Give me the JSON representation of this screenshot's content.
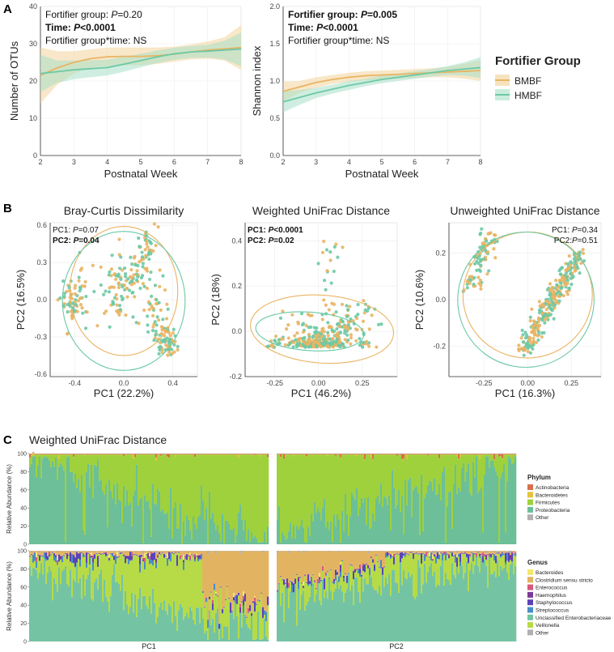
{
  "panels": {
    "A": "A",
    "B": "B",
    "C": "C"
  },
  "colors": {
    "BMBF": "#e9b463",
    "HMBF": "#6cc9a5"
  },
  "chart_data": [
    {
      "type": "line",
      "id": "otus",
      "xlabel": "Postnatal Week",
      "ylabel": "Number of OTUs",
      "xlim": [
        2,
        8
      ],
      "ylim": [
        0,
        40
      ],
      "xticks": [
        "2",
        "3",
        "4",
        "5",
        "6",
        "7",
        "8"
      ],
      "yticks": [
        "0",
        "10",
        "20",
        "30",
        "40"
      ],
      "ytick_values": [
        0,
        10,
        20,
        30,
        40
      ],
      "annotations": [
        {
          "prefix": "Fortifier group: ",
          "p": "P",
          "suffix": "=0.20",
          "bold": false
        },
        {
          "prefix": "Time: ",
          "p": "P",
          "suffix": "<0.0001",
          "bold": true
        },
        {
          "prefix": "Fortifier group*time: NS",
          "p": "",
          "suffix": "",
          "bold": false
        }
      ],
      "x": [
        2,
        2.5,
        3,
        3.5,
        4,
        4.5,
        5,
        5.5,
        6,
        6.5,
        7,
        7.5,
        8
      ],
      "series": [
        {
          "name": "BMBF",
          "values": [
            21.5,
            23.5,
            25,
            26,
            26.5,
            26.6,
            26.6,
            26.8,
            27.2,
            27.8,
            28.3,
            28.6,
            29
          ],
          "lower": [
            14,
            19,
            22,
            23.5,
            24,
            24.2,
            24.2,
            24.6,
            25.2,
            25.8,
            26,
            25.5,
            23
          ],
          "upper": [
            29,
            28,
            28,
            28.5,
            29,
            29,
            29,
            29,
            29.2,
            29.8,
            30.6,
            31.7,
            35
          ]
        },
        {
          "name": "HMBF",
          "values": [
            22,
            22.5,
            23,
            23.3,
            23.6,
            24.5,
            25.5,
            26.5,
            27.3,
            27.8,
            28,
            28.3,
            28.6
          ],
          "lower": [
            17,
            19.5,
            20.5,
            21,
            21.5,
            22.5,
            23.7,
            24.8,
            25.7,
            26.2,
            26.3,
            25.8,
            24
          ],
          "upper": [
            27,
            25.5,
            25.5,
            25.6,
            25.7,
            26.5,
            27.3,
            28.2,
            28.9,
            29.4,
            29.7,
            30.8,
            33
          ]
        }
      ]
    },
    {
      "type": "line",
      "id": "shannon",
      "xlabel": "Postnatal Week",
      "ylabel": "Shannon index",
      "xlim": [
        2,
        8
      ],
      "ylim": [
        0,
        2
      ],
      "xticks": [
        "2",
        "3",
        "4",
        "5",
        "6",
        "7",
        "8"
      ],
      "yticks": [
        "0.0",
        "0.5",
        "1.0",
        "1.5",
        "2.0"
      ],
      "ytick_values": [
        0,
        0.5,
        1,
        1.5,
        2
      ],
      "annotations": [
        {
          "prefix": "Fortifier group: ",
          "p": "P",
          "suffix": "=0.005",
          "bold": true
        },
        {
          "prefix": "Time: ",
          "p": "P",
          "suffix": "<0.0001",
          "bold": true
        },
        {
          "prefix": "Fortifier group*time: NS",
          "p": "",
          "suffix": "",
          "bold": false
        }
      ],
      "x": [
        2,
        2.5,
        3,
        3.5,
        4,
        4.5,
        5,
        5.5,
        6,
        6.5,
        7,
        7.5,
        8
      ],
      "series": [
        {
          "name": "BMBF",
          "values": [
            0.86,
            0.92,
            0.98,
            1.02,
            1.05,
            1.07,
            1.08,
            1.09,
            1.1,
            1.11,
            1.12,
            1.13,
            1.14
          ],
          "lower": [
            0.73,
            0.84,
            0.91,
            0.96,
            0.99,
            1.01,
            1.02,
            1.03,
            1.04,
            1.05,
            1.05,
            1.03,
            1.0
          ],
          "upper": [
            0.99,
            1.0,
            1.05,
            1.08,
            1.11,
            1.13,
            1.14,
            1.15,
            1.16,
            1.17,
            1.19,
            1.23,
            1.28
          ]
        },
        {
          "name": "HMBF",
          "values": [
            0.72,
            0.78,
            0.84,
            0.89,
            0.94,
            0.98,
            1.02,
            1.05,
            1.08,
            1.11,
            1.14,
            1.16,
            1.18
          ],
          "lower": [
            0.58,
            0.68,
            0.77,
            0.83,
            0.88,
            0.93,
            0.97,
            1.0,
            1.03,
            1.06,
            1.08,
            1.07,
            1.04
          ],
          "upper": [
            0.86,
            0.88,
            0.91,
            0.95,
            1.0,
            1.03,
            1.07,
            1.1,
            1.13,
            1.16,
            1.2,
            1.25,
            1.32
          ]
        }
      ]
    },
    {
      "type": "scatter",
      "id": "bray",
      "title": "Bray-Curtis Dissimilarity",
      "xlabel": "PC1  (22.2%)",
      "ylabel": "PC2  (16.5%)",
      "xlim": [
        -0.6,
        0.6
      ],
      "ylim": [
        -0.62,
        0.62
      ],
      "xticks": [
        "-0.4",
        "0.0",
        "0.4"
      ],
      "xtick_values": [
        -0.4,
        0,
        0.4
      ],
      "yticks": [
        "-0.6",
        "-0.3",
        "0.0",
        "0.3",
        "0.6"
      ],
      "ytick_values": [
        -0.6,
        -0.3,
        0,
        0.3,
        0.6
      ],
      "annotations": [
        {
          "prefix": "PC1: ",
          "p": "P",
          "suffix": "=0.07",
          "bold": false
        },
        {
          "prefix": "PC2: ",
          "p": "P",
          "suffix": "=0.04",
          "bold": true
        }
      ],
      "ann_align": "left",
      "ellipses": [
        {
          "name": "BMBF",
          "cx": 0.0,
          "cy": 0.07,
          "rx": 0.44,
          "ry": 0.52
        },
        {
          "name": "HMBF",
          "cx": 0.0,
          "cy": -0.01,
          "rx": 0.5,
          "ry": 0.56
        }
      ]
    },
    {
      "type": "scatter",
      "id": "wunifrac",
      "title": "Weighted UniFrac Distance",
      "xlabel": "PC1  (46.2%)",
      "ylabel": "PC2  (18%)",
      "xlim": [
        -0.42,
        0.45
      ],
      "ylim": [
        -0.2,
        0.48
      ],
      "xticks": [
        "-0.25",
        "0.00",
        "0.25"
      ],
      "xtick_values": [
        -0.25,
        0,
        0.25
      ],
      "yticks": [
        "-0.2",
        "0.0",
        "0.2",
        "0.4"
      ],
      "ytick_values": [
        -0.2,
        0,
        0.2,
        0.4
      ],
      "annotations": [
        {
          "prefix": "PC1: ",
          "p": "P",
          "suffix": "<0.0001",
          "bold": true
        },
        {
          "prefix": "PC2: ",
          "p": "P",
          "suffix": "=0.02",
          "bold": true
        }
      ],
      "ann_align": "left",
      "ellipses": [
        {
          "name": "BMBF",
          "cx": 0.02,
          "cy": 0.01,
          "rx": 0.41,
          "ry": 0.15
        },
        {
          "name": "HMBF",
          "cx": -0.05,
          "cy": 0.0,
          "rx": 0.31,
          "ry": 0.085
        }
      ]
    },
    {
      "type": "scatter",
      "id": "uunifrac",
      "title": "Unweighted UniFrac Distance",
      "xlabel": "PC1  (16.3%)",
      "ylabel": "PC2  (10.6%)",
      "xlim": [
        -0.45,
        0.42
      ],
      "ylim": [
        -0.33,
        0.33
      ],
      "xticks": [
        "-0.25",
        "0.00",
        "0.25"
      ],
      "xtick_values": [
        -0.25,
        0,
        0.25
      ],
      "yticks": [
        "-0.2",
        "0.0",
        "0.2"
      ],
      "ytick_values": [
        -0.2,
        0,
        0.2
      ],
      "annotations": [
        {
          "prefix": "PC1: ",
          "p": "P",
          "suffix": "=0.34",
          "bold": false
        },
        {
          "prefix": "PC2:",
          "p": "P",
          "suffix": "=0.51",
          "bold": false
        }
      ],
      "ann_align": "right",
      "ellipses": [
        {
          "name": "BMBF",
          "cx": 0.0,
          "cy": 0.02,
          "rx": 0.37,
          "ry": 0.27
        },
        {
          "name": "HMBF",
          "cx": -0.01,
          "cy": 0.0,
          "rx": 0.39,
          "ry": 0.29
        }
      ]
    },
    {
      "type": "bar",
      "id": "stacked",
      "title": "Weighted UniFrac Distance",
      "ylabel": "Relative Abundance (%)",
      "xlabels": [
        "PC1",
        "PC2"
      ],
      "yticks": [
        "0",
        "20",
        "40",
        "60",
        "80",
        "100"
      ],
      "phylum": {
        "title": "Phylum",
        "items": [
          {
            "name": "Actinobacteria",
            "color": "#d9704c"
          },
          {
            "name": "Bacteroidetes",
            "color": "#e4c33e"
          },
          {
            "name": "Firmicutes",
            "color": "#9fd13c"
          },
          {
            "name": "Proteobacteria",
            "color": "#6cbf98"
          },
          {
            "name": "Other",
            "color": "#b0b0b0"
          }
        ]
      },
      "genus": {
        "title": "Genus",
        "items": [
          {
            "name": "Bacteroides",
            "color": "#f3e86b"
          },
          {
            "name": "Clostridium sensu stricto",
            "color": "#e2b461"
          },
          {
            "name": "Enterococcus",
            "color": "#d8587c"
          },
          {
            "name": "Haemophilus",
            "color": "#7a3a9a"
          },
          {
            "name": "Staphylococcus",
            "color": "#5a43b8"
          },
          {
            "name": "Streptococcus",
            "color": "#4a8cc8"
          },
          {
            "name": "Unclassified Enterobacteriaceae",
            "color": "#74c4a4"
          },
          {
            "name": "Veillonella",
            "color": "#b7db47"
          },
          {
            "name": "Other",
            "color": "#b0b0b0"
          }
        ]
      }
    }
  ],
  "legend": {
    "title": "Fortifier Group",
    "items": [
      "BMBF",
      "HMBF"
    ]
  }
}
